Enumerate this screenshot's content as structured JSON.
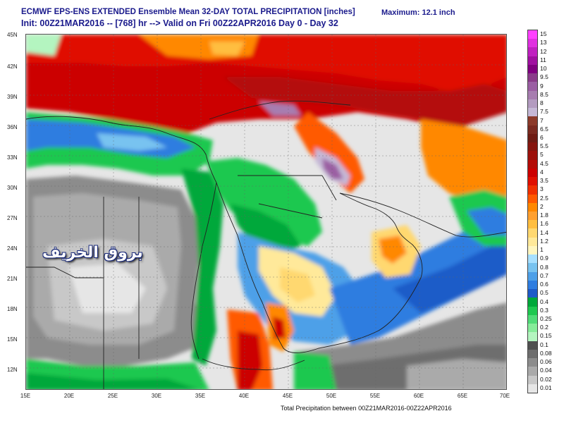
{
  "header": {
    "title_line1": "ECMWF EPS-ENS EXTENDED Ensemble Mean 32-DAY TOTAL PRECIPITATION [inches]",
    "title_line2": "Init: 00Z21MAR2016 -- [768] hr --> Valid on Fri 00Z22APR2016  Day 0 - Day 32",
    "maximum": "Maximum: 12.1 inch"
  },
  "footer": "Total Precipitation between 00Z21MAR2016-00Z22APR2016",
  "watermark": "بروق الخريف",
  "axes": {
    "lat_labels": [
      "45N",
      "42N",
      "39N",
      "36N",
      "33N",
      "30N",
      "27N",
      "24N",
      "21N",
      "18N",
      "15N",
      "12N"
    ],
    "lon_labels": [
      "15E",
      "20E",
      "25E",
      "30E",
      "35E",
      "40E",
      "45E",
      "50E",
      "55E",
      "60E",
      "65E",
      "70E"
    ]
  },
  "legend": [
    {
      "label": "15",
      "color": "#ff40ff"
    },
    {
      "label": "13",
      "color": "#e030e0"
    },
    {
      "label": "12",
      "color": "#c020c0"
    },
    {
      "label": "11",
      "color": "#a010a0"
    },
    {
      "label": "10",
      "color": "#800080"
    },
    {
      "label": "9.5",
      "color": "#8a3c8a"
    },
    {
      "label": "9",
      "color": "#9b5fa3"
    },
    {
      "label": "8.5",
      "color": "#a77db0"
    },
    {
      "label": "8",
      "color": "#b39bc0"
    },
    {
      "label": "7.5",
      "color": "#c5b8d6"
    },
    {
      "label": "7",
      "color": "#8c3a2a"
    },
    {
      "label": "6.5",
      "color": "#7a2a20"
    },
    {
      "label": "6",
      "color": "#6e1c14"
    },
    {
      "label": "5.5",
      "color": "#86160f"
    },
    {
      "label": "5",
      "color": "#9d110b"
    },
    {
      "label": "4.5",
      "color": "#b40c07"
    },
    {
      "label": "4",
      "color": "#cc0000"
    },
    {
      "label": "3.5",
      "color": "#e01000"
    },
    {
      "label": "3",
      "color": "#f03000"
    },
    {
      "label": "2.5",
      "color": "#ff5a00"
    },
    {
      "label": "2",
      "color": "#ff8800"
    },
    {
      "label": "1.8",
      "color": "#ffa030"
    },
    {
      "label": "1.6",
      "color": "#ffbe40"
    },
    {
      "label": "1.4",
      "color": "#ffd870"
    },
    {
      "label": "1.2",
      "color": "#ffe99a"
    },
    {
      "label": "1",
      "color": "#fff6c0"
    },
    {
      "label": "0.9",
      "color": "#a8e0ff"
    },
    {
      "label": "0.8",
      "color": "#78c3f0"
    },
    {
      "label": "0.7",
      "color": "#4ea0e8"
    },
    {
      "label": "0.6",
      "color": "#2f7de0"
    },
    {
      "label": "0.5",
      "color": "#1e5bc8"
    },
    {
      "label": "0.4",
      "color": "#00a83a"
    },
    {
      "label": "0.3",
      "color": "#1ec850"
    },
    {
      "label": "0.25",
      "color": "#50dc78"
    },
    {
      "label": "0.2",
      "color": "#86ec9a"
    },
    {
      "label": "0.15",
      "color": "#b4f5c0"
    },
    {
      "label": "0.1",
      "color": "#505050"
    },
    {
      "label": "0.08",
      "color": "#6e6e6e"
    },
    {
      "label": "0.06",
      "color": "#8c8c8c"
    },
    {
      "label": "0.04",
      "color": "#aaaaaa"
    },
    {
      "label": "0.02",
      "color": "#c8c8c8"
    },
    {
      "label": "0.01",
      "color": "#e6e6e6"
    }
  ]
}
